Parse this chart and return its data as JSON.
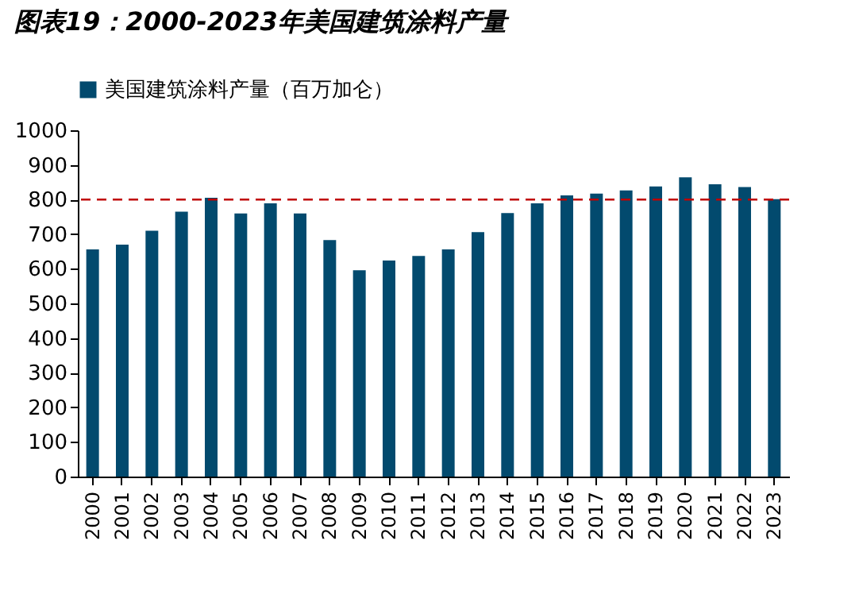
{
  "chart_data": {
    "type": "bar",
    "title": "图表19：2000-2023年美国建筑涂料产量",
    "categories": [
      "2000",
      "2001",
      "2002",
      "2003",
      "2004",
      "2005",
      "2006",
      "2007",
      "2008",
      "2009",
      "2010",
      "2011",
      "2012",
      "2013",
      "2014",
      "2015",
      "2016",
      "2017",
      "2018",
      "2019",
      "2020",
      "2021",
      "2022",
      "2023"
    ],
    "series": [
      {
        "name": "美国建筑涂料产量（百万加仑）",
        "color": "#024a6e",
        "values": [
          656,
          670,
          710,
          765,
          805,
          760,
          789,
          760,
          683,
          596,
          624,
          637,
          656,
          706,
          761,
          789,
          812,
          817,
          826,
          838,
          864,
          844,
          836,
          801
        ]
      }
    ],
    "ylim": [
      0,
      1000
    ],
    "yticks": [
      0,
      100,
      200,
      300,
      400,
      500,
      600,
      700,
      800,
      900,
      1000
    ],
    "ref_lines": [
      {
        "axis": "y",
        "value": 800,
        "color": "#c00000",
        "line_style": "dashed"
      }
    ],
    "legend": "top",
    "grid": false
  }
}
